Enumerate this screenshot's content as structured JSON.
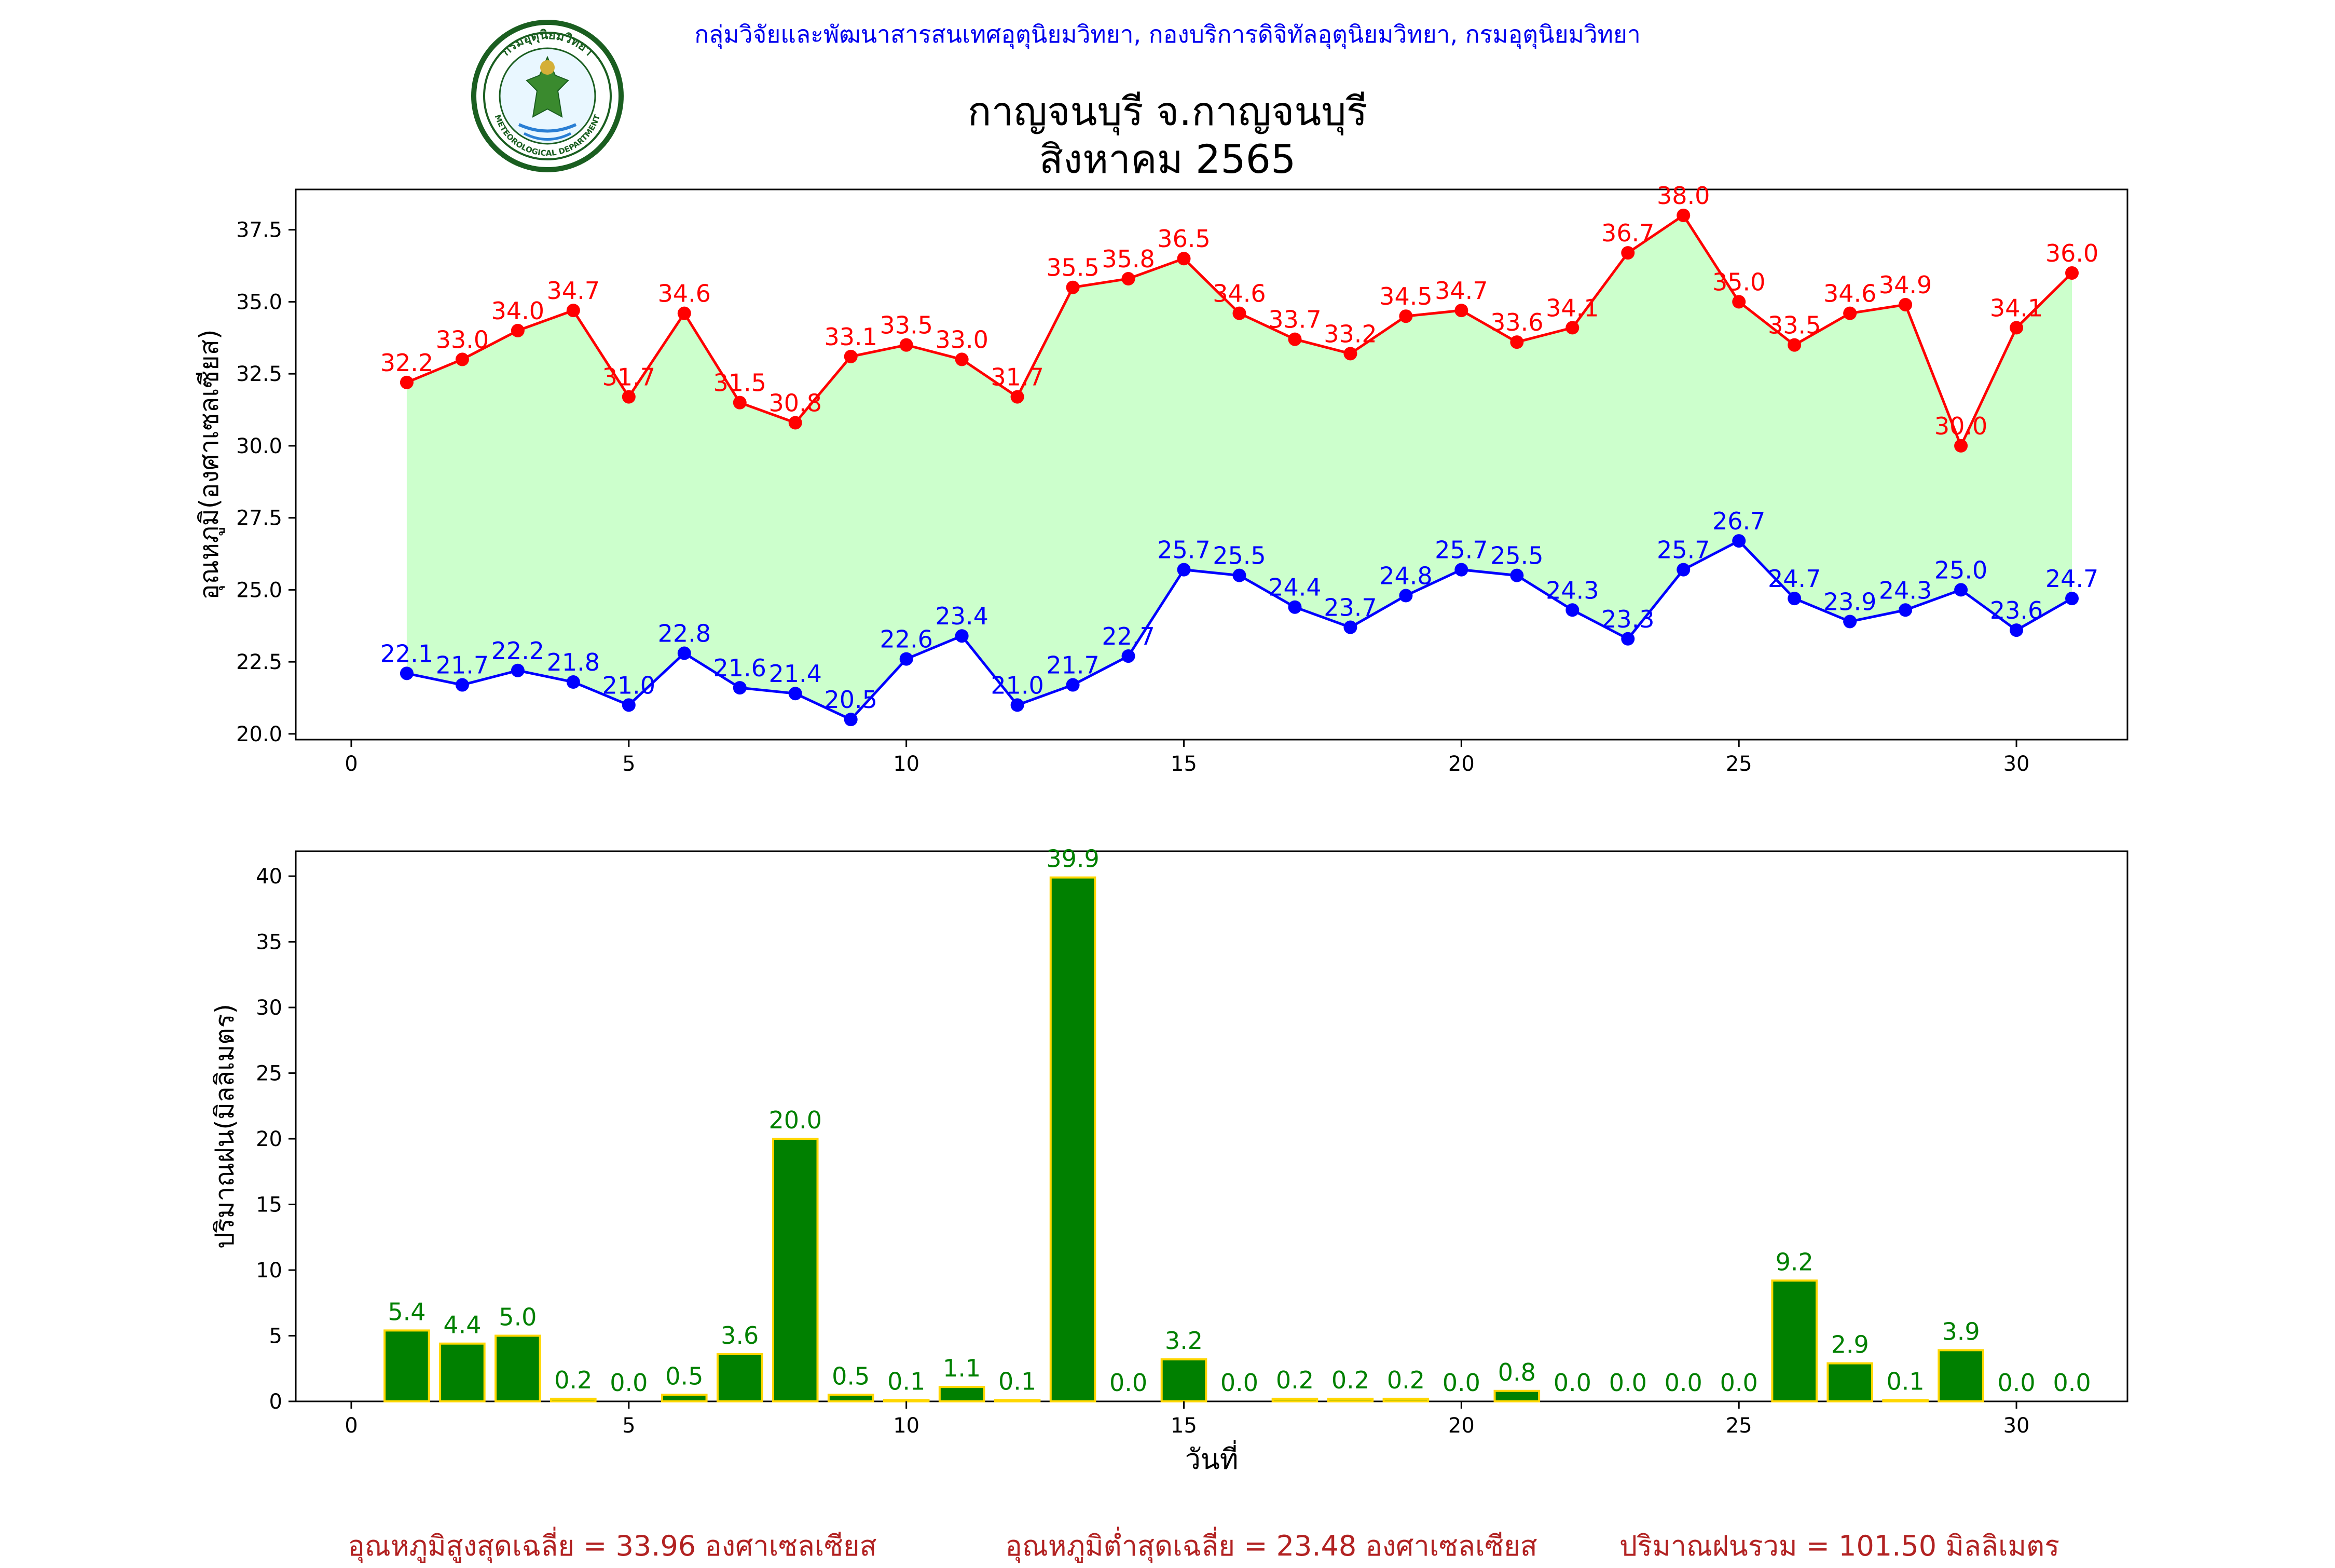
{
  "header": {
    "org": "กลุ่มวิจัยและพัฒนาสารสนเทศอุตุนิยมวิทยา, กองบริการดิจิทัลอุตุนิยมวิทยา, กรมอุตุนิยมวิทยา",
    "title": "กาญจนบุรี จ.กาญจนบุรี",
    "subtitle": "สิงหาคม 2565",
    "logo_text_top": "กรมอุตุนิยมวิทยา",
    "logo_text_bottom": "METEOROLOGICAL DEPARTMENT"
  },
  "colors": {
    "max_line": "#ff0000",
    "min_line": "#0000ff",
    "fill": "#ccffcc",
    "bar": "#008000",
    "bar_edge": "#ffd700",
    "bar_label": "#008000",
    "footer": "#b22222"
  },
  "chart_data": [
    {
      "type": "line",
      "ylabel": "อุณหภูมิ(องศาเซลเซียส)",
      "xlabel": "",
      "xlim": [
        -1,
        32
      ],
      "ylim": [
        19.8,
        38.9
      ],
      "xticks": [
        0,
        5,
        10,
        15,
        20,
        25,
        30
      ],
      "yticks": [
        "20.0",
        "22.5",
        "25.0",
        "27.5",
        "30.0",
        "32.5",
        "35.0",
        "37.5"
      ],
      "x": [
        1,
        2,
        3,
        4,
        5,
        6,
        7,
        8,
        9,
        10,
        11,
        12,
        13,
        14,
        15,
        16,
        17,
        18,
        19,
        20,
        21,
        22,
        23,
        24,
        25,
        26,
        27,
        28,
        29,
        30,
        31
      ],
      "series": [
        {
          "values": [
            32.2,
            33.0,
            34.0,
            34.7,
            31.7,
            34.6,
            31.5,
            30.8,
            33.1,
            33.5,
            33.0,
            31.7,
            35.5,
            35.8,
            36.5,
            34.6,
            33.7,
            33.2,
            34.5,
            34.7,
            33.6,
            34.1,
            36.7,
            38.0,
            35.0,
            33.5,
            34.6,
            34.9,
            30.0,
            34.1,
            36.0
          ],
          "labels": [
            "32.2",
            "33.0",
            "34.0",
            "34.7",
            "31.7",
            "34.6",
            "31.5",
            "30.8",
            "33.1",
            "33.5",
            "33.0",
            "31.7",
            "35.5",
            "35.8",
            "36.5",
            "34.6",
            "33.7",
            "33.2",
            "34.5",
            "34.7",
            "33.6",
            "34.1",
            "36.7",
            "38.0",
            "35.0",
            "33.5",
            "34.6",
            "34.9",
            "30.0",
            "34.1",
            "36.0"
          ]
        },
        {
          "values": [
            22.1,
            21.7,
            22.2,
            21.8,
            21.0,
            22.8,
            21.6,
            21.4,
            20.5,
            22.6,
            23.4,
            21.0,
            21.7,
            22.7,
            25.7,
            25.5,
            24.4,
            23.7,
            24.8,
            25.7,
            25.5,
            24.3,
            23.3,
            25.7,
            26.7,
            24.7,
            23.9,
            24.3,
            25.0,
            23.6,
            24.7
          ],
          "labels": [
            "22.1",
            "21.7",
            "22.2",
            "21.8",
            "21.0",
            "22.8",
            "21.6",
            "21.4",
            "20.5",
            "22.6",
            "23.4",
            "21.0",
            "21.7",
            "22.7",
            "25.7",
            "25.5",
            "24.4",
            "23.7",
            "24.8",
            "25.7",
            "25.5",
            "24.3",
            "23.3",
            "25.7",
            "26.7",
            "24.7",
            "23.9",
            "24.3",
            "25.0",
            "23.6",
            "24.7"
          ]
        }
      ]
    },
    {
      "type": "bar",
      "ylabel": "ปริมาณฝน(มิลลิเมตร)",
      "xlabel": "วันที่",
      "xlim": [
        -1,
        32
      ],
      "ylim": [
        0,
        41.9
      ],
      "xticks": [
        0,
        5,
        10,
        15,
        20,
        25,
        30
      ],
      "yticks": [
        "0",
        "5",
        "10",
        "15",
        "20",
        "25",
        "30",
        "35",
        "40"
      ],
      "x": [
        1,
        2,
        3,
        4,
        5,
        6,
        7,
        8,
        9,
        10,
        11,
        12,
        13,
        14,
        15,
        16,
        17,
        18,
        19,
        20,
        21,
        22,
        23,
        24,
        25,
        26,
        27,
        28,
        29,
        30,
        31
      ],
      "values": [
        5.4,
        4.4,
        5.0,
        0.2,
        0.0,
        0.5,
        3.6,
        20.0,
        0.5,
        0.1,
        1.1,
        0.1,
        39.9,
        0.0,
        3.2,
        0.0,
        0.2,
        0.2,
        0.2,
        0.0,
        0.8,
        0.0,
        0.0,
        0.0,
        0.0,
        9.2,
        2.9,
        0.1,
        3.9,
        0.0,
        0.0
      ],
      "labels": [
        "5.4",
        "4.4",
        "5.0",
        "0.2",
        "0.0",
        "0.5",
        "3.6",
        "20.0",
        "0.5",
        "0.1",
        "1.1",
        "0.1",
        "39.9",
        "0.0",
        "3.2",
        "0.0",
        "0.2",
        "0.2",
        "0.2",
        "0.0",
        "0.8",
        "0.0",
        "0.0",
        "0.0",
        "0.0",
        "9.2",
        "2.9",
        "0.1",
        "3.9",
        "0.0",
        "0.0"
      ]
    }
  ],
  "footer": {
    "avg_max": "อุณหภูมิสูงสุดเฉลี่ย = 33.96 องศาเซลเซียส",
    "avg_min": "อุณหภูมิต่ำสุดเฉลี่ย = 23.48 องศาเซลเซียส",
    "total_rain": "ปริมาณฝนรวม = 101.50 มิลลิเมตร"
  }
}
